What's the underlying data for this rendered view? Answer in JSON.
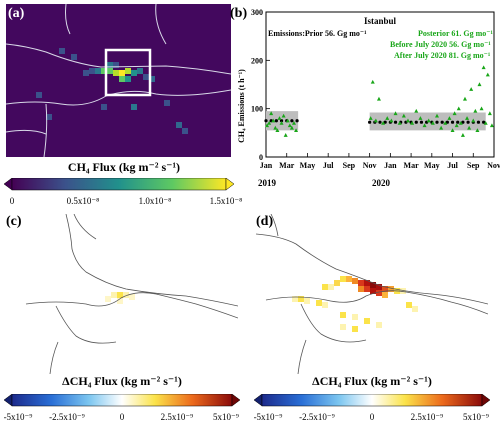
{
  "panels": {
    "a": {
      "label": "(a)"
    },
    "b": {
      "label": "(b)"
    },
    "c": {
      "label": "(c)"
    },
    "d": {
      "label": "(d)"
    }
  },
  "colorbar_top": {
    "title": "CH₄ Flux (kg m⁻² s⁻¹)",
    "ticks": [
      "0",
      "0.5x10⁻⁸",
      "1.0x10⁻⁸",
      "1.5x10⁻⁸"
    ]
  },
  "colorbar_bottom": {
    "title": "ΔCH₄ Flux (kg m⁻² s⁻¹)",
    "ticks": [
      "-5x10⁻⁹",
      "-2.5x10⁻⁹",
      "0",
      "2.5x10⁻⁹",
      "5x10⁻⁹"
    ]
  },
  "chart_data": {
    "type": "scatter",
    "title": "Istanbul",
    "annotations": [
      "Emissions:Prior 56. Gg mo⁻¹",
      "Posterior 61. Gg mo⁻¹",
      "Before July 2020 56. Gg mo⁻¹",
      "After July 2020 81. Gg mo⁻¹"
    ],
    "ylabel": "CH₄ Emissions (t h⁻¹)",
    "ylim": [
      0,
      300
    ],
    "yticks": [
      "0",
      "100",
      "200",
      "300"
    ],
    "xticks": [
      "Jan",
      "Mar",
      "May",
      "Jul",
      "Sep",
      "Nov",
      "Jan",
      "Mar",
      "May",
      "Jul",
      "Sep",
      "Nov"
    ],
    "year_labels": [
      "2019",
      "2020"
    ],
    "xlim_months": [
      0,
      22
    ],
    "series": [
      {
        "name": "Prior",
        "color": "#000000",
        "x": [
          0.0,
          0.5,
          1.0,
          1.5,
          2.0,
          2.5,
          3.0,
          10.0,
          10.5,
          11.0,
          11.5,
          12.0,
          12.5,
          13.0,
          13.5,
          14.0,
          14.5,
          15.0,
          15.5,
          16.0,
          16.5,
          17.0,
          17.5,
          18.0,
          18.5,
          19.0,
          19.5,
          20.0,
          20.5,
          21.0
        ],
        "y": [
          75,
          75,
          75,
          75,
          75,
          75,
          75,
          72,
          72,
          72,
          72,
          72,
          72,
          72,
          72,
          72,
          72,
          72,
          72,
          72,
          72,
          72,
          72,
          72,
          72,
          72,
          72,
          72,
          72,
          72
        ]
      },
      {
        "name": "Posterior",
        "color": "#19a619",
        "x": [
          0.1,
          0.3,
          0.5,
          0.7,
          0.9,
          1.1,
          1.3,
          1.5,
          1.7,
          1.9,
          2.1,
          2.3,
          2.5,
          2.7,
          2.9,
          10.1,
          10.3,
          10.6,
          10.9,
          11.3,
          11.7,
          12.1,
          12.5,
          12.9,
          13.3,
          13.7,
          14.1,
          14.5,
          14.9,
          15.3,
          15.7,
          16.1,
          16.5,
          16.9,
          17.3,
          17.7,
          18.0,
          18.2,
          18.4,
          18.6,
          18.8,
          19.0,
          19.2,
          19.4,
          19.6,
          19.8,
          20.0,
          20.2,
          20.4,
          20.6,
          20.8,
          21.0,
          21.2,
          21.4,
          21.6,
          21.8
        ],
        "y": [
          65,
          70,
          90,
          75,
          60,
          55,
          80,
          70,
          85,
          45,
          75,
          65,
          60,
          70,
          55,
          80,
          155,
          75,
          120,
          70,
          80,
          75,
          90,
          70,
          85,
          75,
          70,
          95,
          80,
          65,
          75,
          70,
          85,
          60,
          70,
          80,
          55,
          90,
          65,
          100,
          70,
          45,
          120,
          80,
          60,
          140,
          75,
          95,
          55,
          150,
          100,
          185,
          70,
          170,
          90,
          65
        ]
      }
    ]
  }
}
